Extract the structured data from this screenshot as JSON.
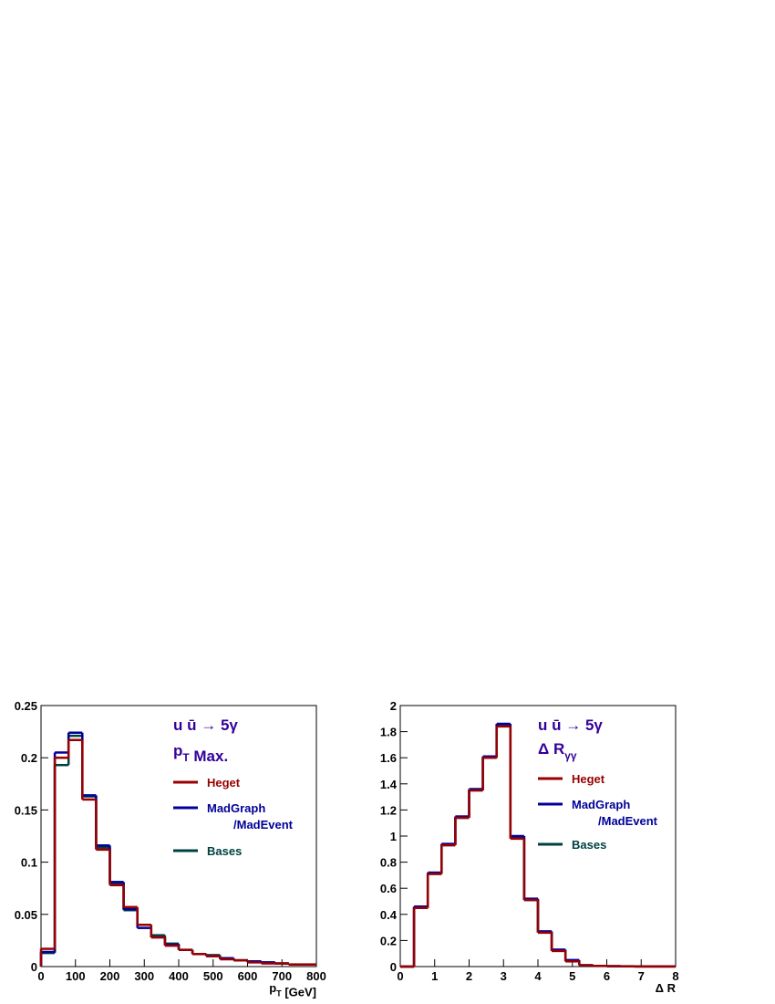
{
  "chart_data": [
    {
      "type": "histogram",
      "title": "u ū → 5γ",
      "subtitle": [
        {
          "text": "p"
        },
        {
          "text": "T",
          "sub": true
        },
        {
          "text": " Max."
        }
      ],
      "x_label": [
        {
          "text": "p"
        },
        {
          "text": "T",
          "sub": true
        },
        {
          "text": " [GeV]"
        }
      ],
      "bins": [
        0,
        40,
        80,
        120,
        160,
        200,
        240,
        280,
        320,
        360,
        400,
        440,
        480,
        520,
        560,
        600,
        640,
        680,
        720,
        760,
        800
      ],
      "series": [
        {
          "name": "Heget",
          "color": "#990000",
          "values": [
            0.017,
            0.2,
            0.217,
            0.16,
            0.112,
            0.078,
            0.057,
            0.04,
            0.028,
            0.02,
            0.016,
            0.012,
            0.01,
            0.007,
            0.006,
            0.004,
            0.003,
            0.003,
            0.002,
            0.002
          ]
        },
        {
          "name": "MadGraph/MadEvent",
          "color": "#000099",
          "values": [
            0.014,
            0.205,
            0.224,
            0.164,
            0.116,
            0.081,
            0.055,
            0.037,
            0.028,
            0.021,
            0.016,
            0.012,
            0.01,
            0.008,
            0.006,
            0.005,
            0.004,
            0.003,
            0.002,
            0.002
          ]
        },
        {
          "name": "Bases",
          "color": "#004040",
          "values": [
            0.013,
            0.193,
            0.221,
            0.163,
            0.114,
            0.08,
            0.054,
            0.04,
            0.03,
            0.022,
            0.016,
            0.012,
            0.011,
            0.008,
            0.006,
            0.005,
            0.004,
            0.003,
            0.002,
            0.002
          ]
        }
      ],
      "xlim": [
        0,
        800
      ],
      "xticks": [
        0,
        100,
        200,
        300,
        400,
        500,
        600,
        700,
        800
      ],
      "ylim": [
        0,
        0.25
      ],
      "yticks": [
        0,
        0.05,
        0.1,
        0.15,
        0.2,
        0.25
      ]
    },
    {
      "type": "histogram",
      "title": "u ū → 5γ",
      "subtitle": [
        {
          "text": "Δ R"
        },
        {
          "text": "γγ",
          "sub": true
        }
      ],
      "x_label": [
        {
          "text": "Δ R"
        }
      ],
      "bins": [
        0,
        0.4,
        0.8,
        1.2,
        1.6,
        2,
        2.4,
        2.8,
        3.2,
        3.6,
        4,
        4.4,
        4.8,
        5.2,
        5.6,
        6,
        6.4,
        6.8,
        7.2,
        7.6,
        8
      ],
      "series": [
        {
          "name": "Heget",
          "color": "#990000",
          "values": [
            0,
            0.45,
            0.71,
            0.93,
            1.14,
            1.35,
            1.6,
            1.84,
            0.98,
            0.51,
            0.26,
            0.12,
            0.04,
            0.01,
            0.005,
            0.003,
            0.002,
            0.001,
            0.001,
            0.001
          ]
        },
        {
          "name": "MadGraph/MadEvent",
          "color": "#000099",
          "values": [
            0,
            0.46,
            0.72,
            0.94,
            1.15,
            1.36,
            1.61,
            1.86,
            1.0,
            0.52,
            0.27,
            0.13,
            0.05,
            0.01,
            0.005,
            0.003,
            0.002,
            0.001,
            0.001,
            0.001
          ]
        },
        {
          "name": "Bases",
          "color": "#004040",
          "values": [
            0,
            0.45,
            0.71,
            0.93,
            1.14,
            1.35,
            1.6,
            1.85,
            0.99,
            0.51,
            0.26,
            0.12,
            0.04,
            0.01,
            0.005,
            0.003,
            0.002,
            0.001,
            0.001,
            0.001
          ]
        }
      ],
      "xlim": [
        0,
        8
      ],
      "xticks": [
        0,
        1,
        2,
        3,
        4,
        5,
        6,
        7,
        8
      ],
      "ylim": [
        0,
        2
      ],
      "yticks": [
        0,
        0.2,
        0.4,
        0.6,
        0.8,
        1,
        1.2,
        1.4,
        1.6,
        1.8,
        2
      ]
    }
  ]
}
